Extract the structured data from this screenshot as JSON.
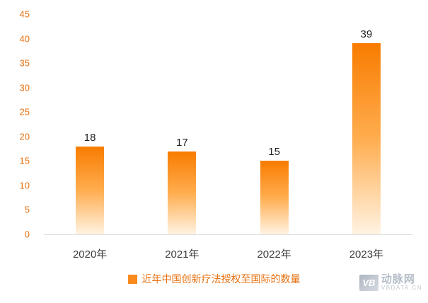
{
  "chart_data": {
    "type": "bar",
    "categories": [
      "2020年",
      "2021年",
      "2022年",
      "2023年"
    ],
    "values": [
      18,
      17,
      15,
      39
    ],
    "title": "",
    "xlabel": "",
    "ylabel": "",
    "ylim": [
      0,
      45
    ],
    "ytick_step": 5,
    "grid": false,
    "legend_position": "bottom",
    "legend_entries": [
      "近年中国创新疗法授权至国际的数量"
    ],
    "colors": {
      "bar_top": "#F87C00",
      "bar_mid": "#FFAD4F",
      "bar_bottom": "#FFF3E3",
      "axis_tick_text": "#E8700F",
      "legend_text": "#E8700F",
      "legend_swatch": "#F98A1D"
    }
  },
  "legend": {
    "label": "近年中国创新疗法授权至国际的数量"
  },
  "watermark": {
    "logo": "VB",
    "name": "动脉网",
    "domain": "VBDATA.CN"
  }
}
